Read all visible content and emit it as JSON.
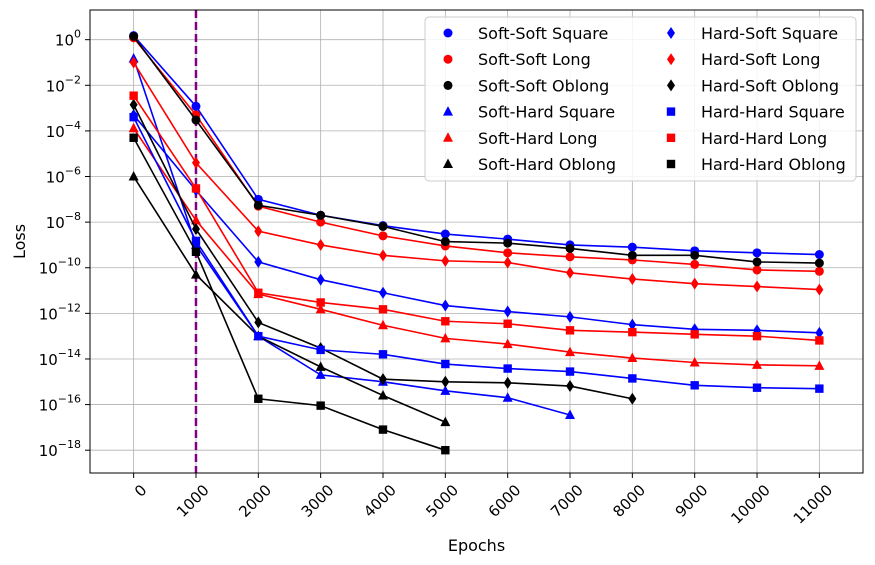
{
  "chart_data": {
    "type": "line",
    "title": "",
    "xlabel": "Epochs",
    "ylabel": "Loss",
    "x_ticks": [
      0,
      1000,
      2000,
      3000,
      4000,
      5000,
      6000,
      7000,
      8000,
      9000,
      10000,
      11000
    ],
    "x_tick_labels": [
      "0",
      "1000",
      "2000",
      "3000",
      "4000",
      "5000",
      "6000",
      "7000",
      "8000",
      "9000",
      "10000",
      "11000"
    ],
    "xlim": [
      -700,
      11700
    ],
    "y_scale": "log",
    "ylim": [
      1e-19,
      20
    ],
    "y_ticks": [
      1e-18,
      1e-16,
      1e-14,
      1e-12,
      1e-10,
      1e-08,
      1e-06,
      0.0001,
      0.01,
      1
    ],
    "y_tick_base": "10",
    "y_tick_exponents": [
      "−18",
      "−16",
      "−14",
      "−12",
      "−10",
      "−8",
      "−6",
      "−4",
      "−2",
      "0"
    ],
    "grid": true,
    "legend_position": "upper-right",
    "legend_columns": 2,
    "vline": {
      "x": 1000,
      "color": "#800080",
      "style": "dashed"
    },
    "colors": {
      "blue": "#0000ff",
      "red": "#ff0000",
      "black": "#000000"
    },
    "series": [
      {
        "name": "Soft-Soft Square",
        "color": "#0000ff",
        "marker": "circle",
        "x": [
          0,
          1000,
          2000,
          3000,
          4000,
          5000,
          6000,
          7000,
          8000,
          9000,
          10000,
          11000
        ],
        "y": [
          1.5,
          0.0012,
          1e-07,
          2e-08,
          7e-09,
          3e-09,
          1.8e-09,
          1e-09,
          8e-10,
          5.5e-10,
          4.5e-10,
          3.8e-10
        ]
      },
      {
        "name": "Soft-Soft Long",
        "color": "#ff0000",
        "marker": "circle",
        "x": [
          0,
          1000,
          2000,
          3000,
          4000,
          5000,
          6000,
          7000,
          8000,
          9000,
          10000,
          11000
        ],
        "y": [
          1.2,
          0.0005,
          5e-08,
          1e-08,
          2.5e-09,
          9e-10,
          4.5e-10,
          3e-10,
          2.2e-10,
          1.4e-10,
          8e-11,
          7e-11
        ]
      },
      {
        "name": "Soft-Soft Oblong",
        "color": "#000000",
        "marker": "circle",
        "x": [
          0,
          1000,
          2000,
          3000,
          4000,
          5000,
          6000,
          7000,
          8000,
          9000,
          10000,
          11000
        ],
        "y": [
          1.4,
          0.0003,
          5.5e-08,
          2e-08,
          6.5e-09,
          1.4e-09,
          1.2e-09,
          7e-10,
          3.5e-10,
          3.5e-10,
          1.8e-10,
          1.6e-10
        ]
      },
      {
        "name": "Soft-Hard Square",
        "color": "#0000ff",
        "marker": "triangle",
        "x": [
          0,
          1000,
          2000,
          3000,
          4000,
          5000,
          6000,
          7000
        ],
        "y": [
          0.15,
          1e-09,
          1e-13,
          2e-15,
          1e-15,
          4e-16,
          2e-16,
          3.5e-17
        ]
      },
      {
        "name": "Soft-Hard Long",
        "color": "#ff0000",
        "marker": "triangle",
        "x": [
          0,
          1000,
          2000,
          3000,
          4000,
          5000,
          6000,
          7000,
          8000,
          9000,
          10000,
          11000
        ],
        "y": [
          0.00013,
          1.2e-08,
          7e-12,
          1.5e-12,
          3e-13,
          8e-14,
          4.5e-14,
          2e-14,
          1.1e-14,
          7e-15,
          5.5e-15,
          5e-15
        ]
      },
      {
        "name": "Soft-Hard Oblong",
        "color": "#000000",
        "marker": "triangle",
        "x": [
          0,
          1000,
          2000,
          3000,
          4000,
          5000
        ],
        "y": [
          1e-06,
          5e-11,
          1e-13,
          4.5e-15,
          2.5e-16,
          1.7e-17
        ]
      },
      {
        "name": "Hard-Soft Square",
        "color": "#0000ff",
        "marker": "diamond",
        "x": [
          0,
          1000,
          2000,
          3000,
          4000,
          5000,
          6000,
          7000,
          8000,
          9000,
          10000,
          11000
        ],
        "y": [
          0.0005,
          2.5e-07,
          1.8e-10,
          3e-11,
          8e-12,
          2.2e-12,
          1.2e-12,
          7e-13,
          3.2e-13,
          2e-13,
          1.8e-13,
          1.4e-13
        ]
      },
      {
        "name": "Hard-Soft Long",
        "color": "#ff0000",
        "marker": "diamond",
        "x": [
          0,
          1000,
          2000,
          3000,
          4000,
          5000,
          6000,
          7000,
          8000,
          9000,
          10000,
          11000
        ],
        "y": [
          0.1,
          4e-06,
          4e-09,
          1e-09,
          3.5e-10,
          2e-10,
          1.7e-10,
          6e-11,
          3.2e-11,
          2e-11,
          1.5e-11,
          1.1e-11
        ]
      },
      {
        "name": "Hard-Soft Oblong",
        "color": "#000000",
        "marker": "diamond",
        "x": [
          0,
          1000,
          2000,
          3000,
          4000,
          5000,
          6000,
          7000,
          8000
        ],
        "y": [
          0.0014,
          5e-09,
          4e-13,
          3e-14,
          1.3e-15,
          1e-15,
          9e-16,
          6.5e-16,
          1.8e-16
        ]
      },
      {
        "name": "Hard-Hard Square",
        "color": "#0000ff",
        "marker": "square",
        "x": [
          0,
          1000,
          2000,
          3000,
          4000,
          5000,
          6000,
          7000,
          8000,
          9000,
          10000,
          11000
        ],
        "y": [
          0.0004,
          1.5e-09,
          1e-13,
          2.5e-14,
          1.6e-14,
          6e-15,
          3.8e-15,
          2.8e-15,
          1.4e-15,
          7e-16,
          5.5e-16,
          5e-16
        ]
      },
      {
        "name": "Hard-Hard Long",
        "color": "#ff0000",
        "marker": "square",
        "x": [
          0,
          1000,
          2000,
          3000,
          4000,
          5000,
          6000,
          7000,
          8000,
          9000,
          10000,
          11000
        ],
        "y": [
          0.0035,
          3e-07,
          8e-12,
          3e-12,
          1.5e-12,
          4.5e-13,
          3.5e-13,
          1.8e-13,
          1.5e-13,
          1.2e-13,
          1e-13,
          6.5e-14
        ]
      },
      {
        "name": "Hard-Hard Oblong",
        "color": "#000000",
        "marker": "square",
        "x": [
          0,
          1000,
          2000,
          3000,
          4000,
          5000
        ],
        "y": [
          5e-05,
          5e-10,
          1.8e-16,
          9e-17,
          8e-18,
          1e-18
        ]
      }
    ]
  }
}
